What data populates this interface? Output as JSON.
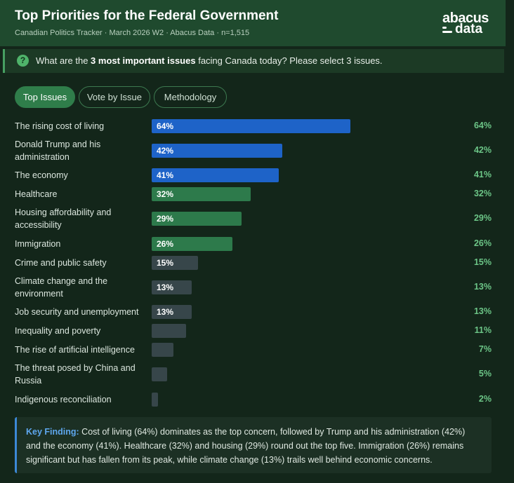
{
  "header": {
    "title": "Top Priorities for the Federal Government",
    "subtitle": "Canadian Politics Tracker · March 2026 W2 · Abacus Data · n=1,515",
    "logo_top": "abacus",
    "logo_bottom": "data"
  },
  "question": {
    "icon": "?",
    "prefix": "What are the ",
    "emphasis": "3 most important issues",
    "suffix": " facing Canada today? Please select 3 issues."
  },
  "tabs": [
    {
      "label": "Top Issues",
      "active": true
    },
    {
      "label": "Vote by Issue",
      "active": false
    },
    {
      "label": "Methodology",
      "active": false
    }
  ],
  "colors": {
    "top_tier": "#1e63c8",
    "mid_tier": "#2d7a4b",
    "low_tier": "#37464a",
    "value_text": "#6cc587",
    "accent": "#4fb36a"
  },
  "chart_data": {
    "type": "bar",
    "orientation": "horizontal",
    "unit": "%",
    "xlim": [
      0,
      100
    ],
    "categories": [
      "The rising cost of living",
      "Donald Trump and his administration",
      "The economy",
      "Healthcare",
      "Housing affordability and accessibility",
      "Immigration",
      "Crime and public safety",
      "Climate change and the environment",
      "Job security and unemployment",
      "Inequality and poverty",
      "The rise of artificial intelligence",
      "The threat posed by China and Russia",
      "Indigenous reconciliation"
    ],
    "values": [
      64,
      42,
      41,
      32,
      29,
      26,
      15,
      13,
      13,
      11,
      7,
      5,
      2
    ],
    "labels": [
      "64%",
      "42%",
      "41%",
      "32%",
      "29%",
      "26%",
      "15%",
      "13%",
      "13%",
      "11%",
      "7%",
      "5%",
      "2%"
    ],
    "tiers": [
      "top",
      "top",
      "top",
      "mid",
      "mid",
      "mid",
      "low",
      "low",
      "low",
      "low",
      "low",
      "low",
      "low"
    ]
  },
  "finding": {
    "label": "Key Finding:",
    "text": " Cost of living (64%) dominates as the top concern, followed by Trump and his administration (42%) and the economy (41%). Healthcare (32%) and housing (29%) round out the top five. Immigration (26%) remains significant but has fallen from its peak, while climate change (13%) trails well behind economic concerns."
  }
}
